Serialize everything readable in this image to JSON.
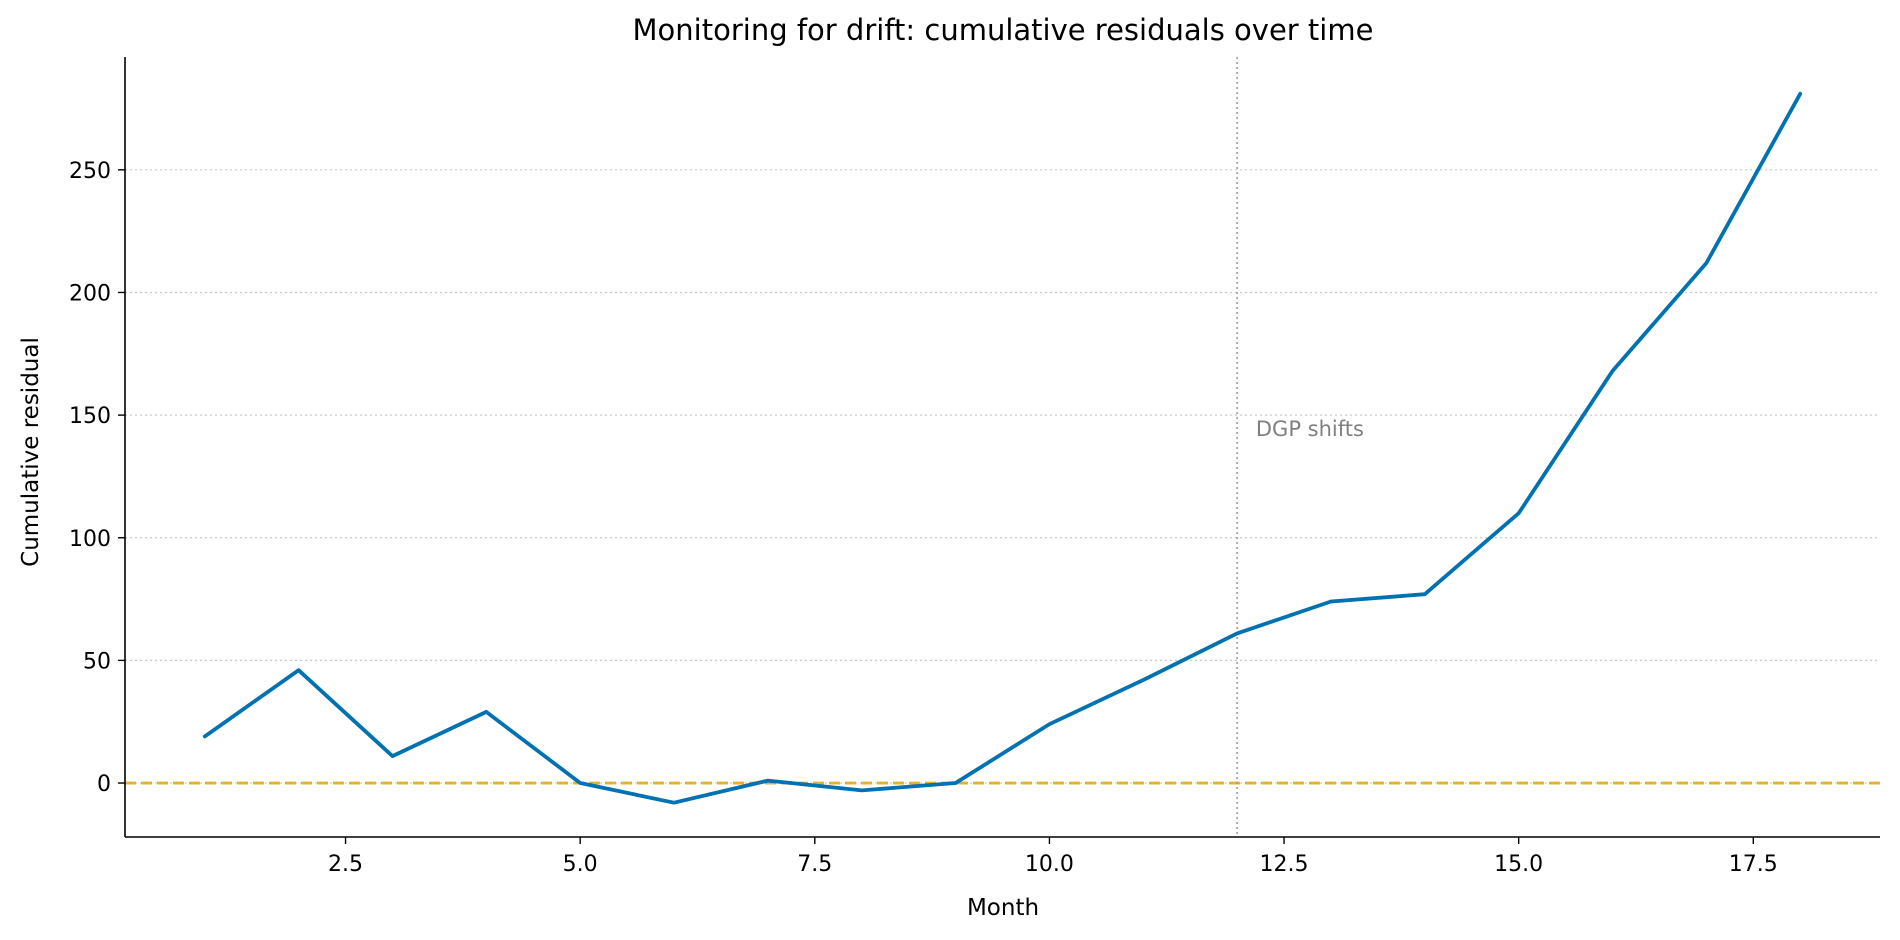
{
  "chart_data": {
    "type": "line",
    "title": "Monitoring for drift: cumulative residuals over time",
    "xlabel": "Month",
    "ylabel": "Cumulative residual",
    "xlim": [
      0.15,
      18.85
    ],
    "ylim": [
      -22,
      296
    ],
    "xticks": [
      2.5,
      5.0,
      7.5,
      10.0,
      12.5,
      15.0,
      17.5
    ],
    "xtick_labels": [
      "2.5",
      "5.0",
      "7.5",
      "10.0",
      "12.5",
      "15.0",
      "17.5"
    ],
    "yticks": [
      0,
      50,
      100,
      150,
      200,
      250
    ],
    "ytick_labels": [
      "0",
      "50",
      "100",
      "150",
      "200",
      "250"
    ],
    "grid": "y-dotted",
    "series": [
      {
        "x": [
          1,
          2,
          3,
          4,
          5,
          6,
          7,
          8,
          9,
          10,
          11,
          12,
          13,
          14,
          15,
          16,
          17,
          18
        ],
        "values": [
          19,
          46,
          11,
          29,
          0,
          -8,
          1,
          -3,
          0,
          24,
          42,
          61,
          74,
          77,
          110,
          168,
          212,
          281
        ],
        "color": "#0072B2"
      }
    ],
    "reference_lines": [
      {
        "orientation": "horizontal",
        "value": 0,
        "style": "dashed",
        "color": "#E69F00"
      },
      {
        "orientation": "vertical",
        "value": 12,
        "style": "dotted",
        "color": "#999999"
      }
    ],
    "annotations": [
      {
        "text": "DGP shifts",
        "x": 12.2,
        "y": 144,
        "color": "#808080"
      }
    ]
  }
}
